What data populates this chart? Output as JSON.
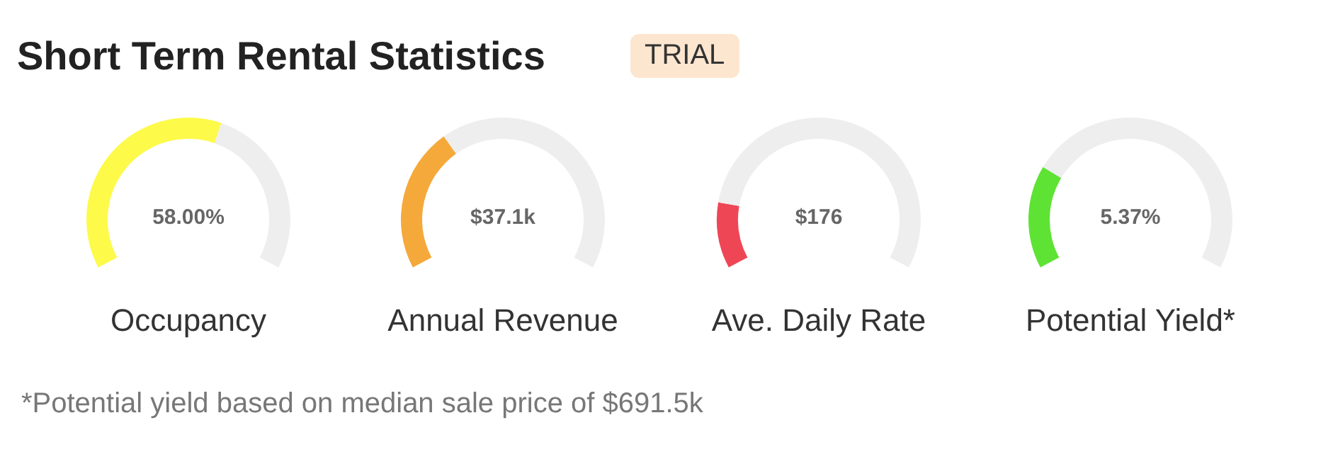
{
  "chart_data": [
    {
      "type": "other",
      "title": "Short Term Rental Statistics",
      "subtitle": "TRIAL",
      "annotations": [
        "*Potential yield based on median sale price of $691.5k"
      ]
    },
    {
      "type": "donut",
      "title": "Occupancy",
      "categories": [
        null,
        null
      ],
      "values": [
        58,
        42
      ],
      "colors": [
        "#fdfa4a",
        "#eeeeee"
      ],
      "annotations": [
        "58.00%"
      ]
    },
    {
      "type": "donut",
      "title": "Annual Revenue",
      "categories": [
        null,
        null
      ],
      "values": [
        35,
        65
      ],
      "colors": [
        "#f5a93a",
        "#eeeeee"
      ],
      "annotations": [
        "$37.1k"
      ]
    },
    {
      "type": "donut",
      "title": "Ave. Daily Rate",
      "categories": [
        null,
        null
      ],
      "values": [
        16,
        84
      ],
      "colors": [
        "#ef4655",
        "#eeeeee"
      ],
      "annotations": [
        "$176"
      ]
    },
    {
      "type": "donut",
      "title": "Potential Yield*",
      "categories": [
        null,
        null
      ],
      "values": [
        25,
        75
      ],
      "colors": [
        "#5ee334",
        "#eeeeee"
      ],
      "annotations": [
        "5.37%"
      ]
    }
  ]
}
